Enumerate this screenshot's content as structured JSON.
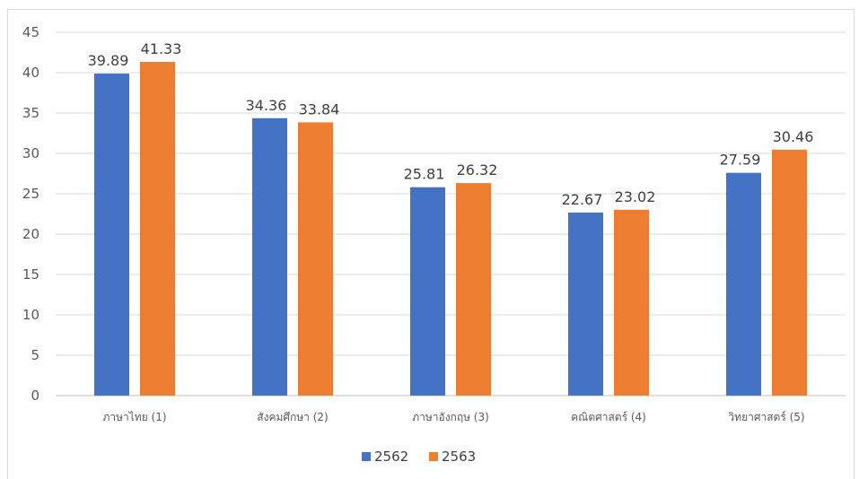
{
  "chart_data": {
    "type": "bar",
    "title": "",
    "xlabel": "",
    "ylabel": "",
    "ylim": [
      0,
      45
    ],
    "yticks": [
      0,
      5,
      10,
      15,
      20,
      25,
      30,
      35,
      40,
      45
    ],
    "grid": true,
    "legend_position": "bottom",
    "categories": [
      "ภาษาไทย (1)",
      "สังคมศึกษา (2)",
      "ภาษาอังกฤษ (3)",
      "คณิตศาสตร์ (4)",
      "วิทยาศาสตร์ (5)"
    ],
    "series": [
      {
        "name": "2562",
        "color": "#4472c4",
        "values": [
          39.89,
          34.36,
          25.81,
          22.67,
          27.59
        ]
      },
      {
        "name": "2563",
        "color": "#ed7d31",
        "values": [
          41.33,
          33.84,
          26.32,
          23.02,
          30.46
        ]
      }
    ],
    "data_labels": [
      [
        "39.89",
        "34.36",
        "25.81",
        "22.67",
        "27.59"
      ],
      [
        "41.33",
        "33.84",
        "26.32",
        "23.02",
        "30.46"
      ]
    ]
  }
}
